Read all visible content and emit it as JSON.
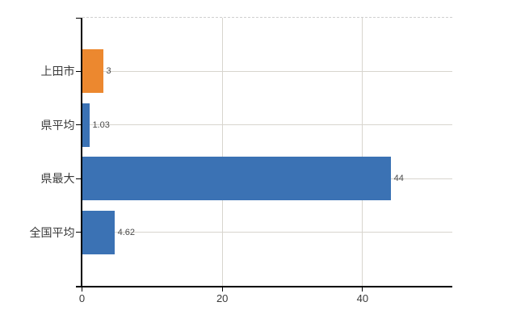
{
  "chart_data": {
    "type": "bar",
    "orientation": "horizontal",
    "title": "",
    "xlabel": "",
    "ylabel": "",
    "categories": [
      "上田市",
      "県平均",
      "県最大",
      "全国平均"
    ],
    "values": [
      3,
      1.03,
      44,
      4.62
    ],
    "value_labels": [
      "3",
      "1.03",
      "44",
      "4.62"
    ],
    "bar_colors": [
      "#EC882F",
      "#3B72B4",
      "#3B72B4",
      "#3B72B4"
    ],
    "xlim": [
      0,
      52.8
    ],
    "x_ticks": [
      0,
      20,
      40
    ],
    "x_tick_labels": [
      "0",
      "20",
      "40"
    ],
    "grid": true,
    "legend": false
  },
  "colors": {
    "bar_blue": "#3B72B4",
    "bar_orange": "#EC882F",
    "grid": "#D8D5CE",
    "top_dashed_grid": "#CFCFCF",
    "axis": "#000000",
    "category_text": "#3A3A3A",
    "value_text": "#4A4A4A",
    "tick_text": "#3A3A3A",
    "background": "#FFFFFF"
  }
}
